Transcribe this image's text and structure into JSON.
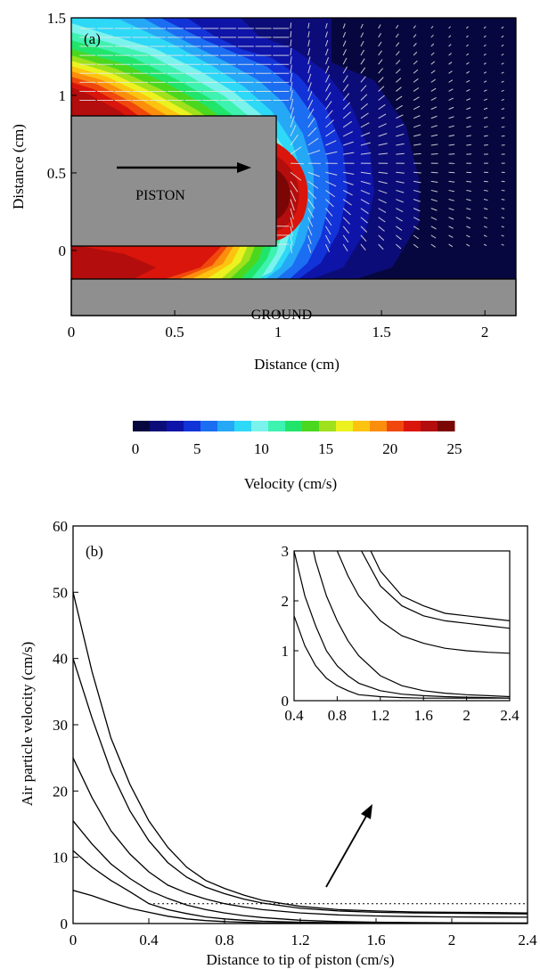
{
  "chart_data": [
    {
      "type": "heatmap",
      "panel_label": "(a)",
      "xlabel": "Distance (cm)",
      "ylabel": "Distance (cm)",
      "xlim": [
        0,
        2.15
      ],
      "ylim": [
        -0.42,
        1.5
      ],
      "x_ticks": [
        "0",
        "0.5",
        "1",
        "1.5",
        "2"
      ],
      "x_tick_values": [
        0,
        0.5,
        1,
        1.5,
        2
      ],
      "y_ticks": [
        "0",
        "0.5",
        "1",
        "1.5"
      ],
      "y_tick_values": [
        0,
        0.5,
        1,
        1.5
      ],
      "annotations": {
        "piston": "PISTON",
        "ground": "GROUND"
      },
      "piston_box_cm": {
        "x0": 0,
        "x1": 0.98,
        "y0": 0.19,
        "y1": 0.94
      },
      "ground_box_cm": {
        "x0": 0,
        "x1": 2.15,
        "y0": -0.42,
        "y1": 0
      },
      "colorbar": {
        "label": "Velocity (cm/s)",
        "range": [
          0,
          25
        ],
        "ticks": [
          "0",
          "5",
          "10",
          "15",
          "20",
          "25"
        ],
        "tick_values": [
          0,
          5,
          10,
          15,
          20,
          25
        ],
        "colors": [
          "#07073f",
          "#0c0c78",
          "#0f14a8",
          "#1233d8",
          "#1b6ef2",
          "#25a8f6",
          "#2ed8f7",
          "#7af3ec",
          "#3ef2b0",
          "#21e56b",
          "#4cd71f",
          "#9fe11c",
          "#ecf21f",
          "#fcc411",
          "#fb8e0d",
          "#f0480c",
          "#d9150c",
          "#b30d0d",
          "#7a0606"
        ]
      },
      "velocity_field_cm_s": [
        {
          "x": 0.0,
          "y": 0.1,
          "v": 23
        },
        {
          "x": 0.45,
          "y": 0.1,
          "v": 20
        },
        {
          "x": 0.8,
          "y": 0.05,
          "v": 14
        },
        {
          "x": 1.05,
          "y": 0.5,
          "v": 23
        },
        {
          "x": 1.0,
          "y": 0.6,
          "v": 24
        },
        {
          "x": 1.0,
          "y": 0.8,
          "v": 21
        },
        {
          "x": 0.1,
          "y": 1.1,
          "v": 23
        },
        {
          "x": 0.45,
          "y": 1.05,
          "v": 20
        },
        {
          "x": 0.85,
          "y": 1.2,
          "v": 12
        },
        {
          "x": 1.35,
          "y": 0.55,
          "v": 9
        },
        {
          "x": 1.6,
          "y": 0.7,
          "v": 4
        },
        {
          "x": 1.9,
          "y": 0.6,
          "v": 2
        },
        {
          "x": 1.9,
          "y": 1.3,
          "v": 1
        }
      ]
    },
    {
      "type": "line",
      "panel_label": "(b)",
      "xlabel": "Distance to tip of piston (cm/s)",
      "ylabel": "Air particle velocity (cm/s)",
      "xlim": [
        0,
        2.4
      ],
      "ylim": [
        0,
        60
      ],
      "x_ticks": [
        "0",
        "0.4",
        "0.8",
        "1.2",
        "1.6",
        "2",
        "2.4"
      ],
      "x_tick_values": [
        0,
        0.4,
        0.8,
        1.2,
        1.6,
        2,
        2.4
      ],
      "y_ticks": [
        "0",
        "10",
        "20",
        "30",
        "40",
        "50",
        "60"
      ],
      "y_tick_values": [
        0,
        10,
        20,
        30,
        40,
        50,
        60
      ],
      "reference_line": {
        "y": 3,
        "x_start": 0.4,
        "x_end": 2.4,
        "style": "dotted"
      },
      "x": [
        0,
        0.1,
        0.2,
        0.3,
        0.4,
        0.5,
        0.6,
        0.7,
        0.8,
        0.9,
        1.0,
        1.2,
        1.4,
        1.6,
        1.8,
        2.0,
        2.2,
        2.4
      ],
      "series": [
        {
          "values": [
            50,
            38,
            28,
            21,
            15.5,
            11.5,
            8.5,
            6.5,
            5.3,
            4.3,
            3.5,
            2.6,
            2.1,
            1.9,
            1.75,
            1.7,
            1.65,
            1.6
          ]
        },
        {
          "values": [
            40,
            31,
            23,
            17,
            12.5,
            9.2,
            7.0,
            5.5,
            4.5,
            3.7,
            3.1,
            2.3,
            1.9,
            1.7,
            1.6,
            1.55,
            1.5,
            1.45
          ]
        },
        {
          "values": [
            25,
            19,
            14,
            10.5,
            7.8,
            5.8,
            4.6,
            3.7,
            3.0,
            2.5,
            2.1,
            1.6,
            1.3,
            1.15,
            1.05,
            1.0,
            0.97,
            0.95
          ]
        },
        {
          "values": [
            15.5,
            12,
            9,
            6.8,
            5.0,
            3.8,
            2.8,
            2.1,
            1.6,
            1.2,
            0.9,
            0.5,
            0.3,
            0.2,
            0.15,
            0.12,
            0.1,
            0.08
          ]
        },
        {
          "values": [
            11,
            8.5,
            6.5,
            4.8,
            3.0,
            2.1,
            1.5,
            1.0,
            0.7,
            0.5,
            0.35,
            0.2,
            0.13,
            0.1,
            0.08,
            0.07,
            0.06,
            0.05
          ]
        },
        {
          "values": [
            5,
            4.2,
            3.2,
            2.3,
            1.7,
            1.1,
            0.7,
            0.45,
            0.3,
            0.2,
            0.12,
            0.08,
            0.06,
            0.05,
            0.05,
            0.05,
            0.05,
            0.05
          ]
        }
      ],
      "inset": {
        "xlim": [
          0.4,
          2.4
        ],
        "ylim": [
          0,
          3
        ],
        "x_ticks": [
          "0.4",
          "0.8",
          "1.2",
          "1.6",
          "2",
          "2.4"
        ],
        "x_tick_values": [
          0.4,
          0.8,
          1.2,
          1.6,
          2,
          2.4
        ],
        "y_ticks": [
          "0",
          "1",
          "2",
          "3"
        ],
        "y_tick_values": [
          0,
          1,
          2,
          3
        ]
      }
    }
  ]
}
